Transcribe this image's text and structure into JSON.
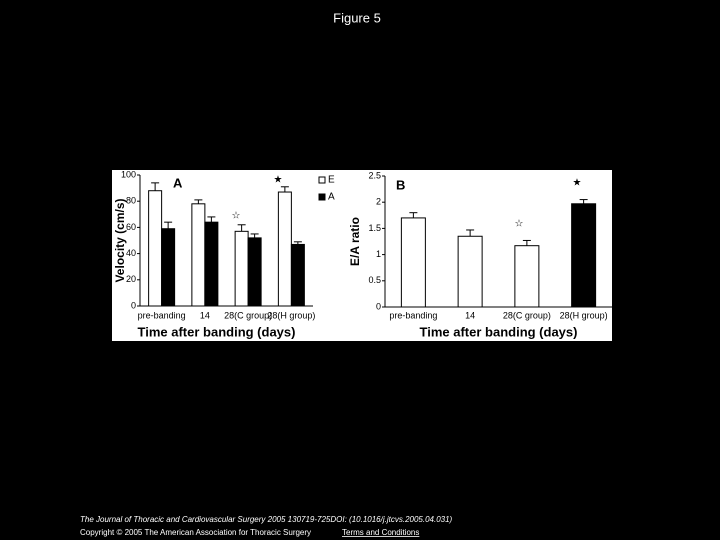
{
  "slide_title": "Figure 5",
  "footer": {
    "citation": "The Journal of Thoracic and Cardiovascular Surgery 2005 130719-725DOI: (10.1016/j.jtcvs.2005.04.031)",
    "copyright": "Copyright © 2005 The American Association for Thoracic Surgery",
    "link": "Terms and Conditions"
  },
  "chart_data": [
    {
      "type": "bar",
      "panel_label": "A",
      "y_label": "Velocity (cm/s)",
      "x_label": "Time after banding (days)",
      "categories": [
        "pre-banding",
        "14",
        "28(C group)",
        "28(H group)"
      ],
      "series": [
        {
          "name": "E",
          "color": "#ffffff",
          "values": [
            88,
            78,
            57,
            87
          ],
          "errors": [
            6,
            3,
            5,
            4
          ]
        },
        {
          "name": "A",
          "color": "#000000",
          "values": [
            59,
            64,
            52,
            47
          ],
          "errors": [
            5,
            4,
            3,
            2
          ]
        }
      ],
      "ylim": [
        0,
        100
      ],
      "yticks": [
        0,
        20,
        40,
        60,
        80,
        100
      ],
      "legend": "right",
      "annotations": [
        "☆",
        "★"
      ]
    },
    {
      "type": "bar",
      "panel_label": "B",
      "y_label": "E/A ratio",
      "x_label": "Time after banding (days)",
      "categories": [
        "pre-banding",
        "14",
        "28(C group)",
        "28(H group)"
      ],
      "values": [
        1.7,
        1.35,
        1.17,
        1.97
      ],
      "errors": [
        0.1,
        0.12,
        0.1,
        0.08
      ],
      "colors": [
        "#ffffff",
        "#ffffff",
        "#ffffff",
        "#000000"
      ],
      "ylim": [
        0,
        2.5
      ],
      "yticks": [
        0,
        0.5,
        1,
        1.5,
        2,
        2.5
      ],
      "annotations": [
        "☆",
        "★"
      ]
    }
  ]
}
